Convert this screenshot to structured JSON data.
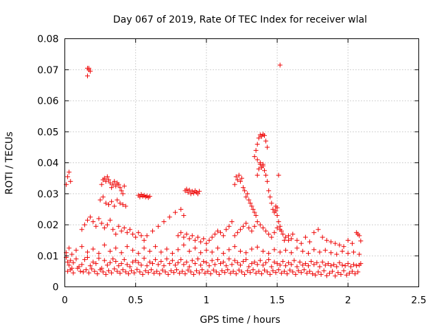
{
  "chart_data": {
    "type": "scatter",
    "title": "Day 067 of 2019, Rate Of TEC Index for receiver wlal",
    "xlabel": "GPS time / hours",
    "ylabel": "ROTI / TECUs",
    "xlim": [
      0,
      2.5
    ],
    "ylim": [
      0,
      0.08
    ],
    "grid": true,
    "marker": "+",
    "colors": {
      "series": "#ee0000",
      "grid": "#a0a0a0",
      "axis": "#000000"
    },
    "xticks": [
      {
        "value": 0,
        "label": "0"
      },
      {
        "value": 0.5,
        "label": "0.5"
      },
      {
        "value": 1,
        "label": "1"
      },
      {
        "value": 1.5,
        "label": "1.5"
      },
      {
        "value": 2,
        "label": "2"
      },
      {
        "value": 2.5,
        "label": "2.5"
      }
    ],
    "yticks": [
      {
        "value": 0,
        "label": "0"
      },
      {
        "value": 0.01,
        "label": "0.01"
      },
      {
        "value": 0.02,
        "label": "0.02"
      },
      {
        "value": 0.03,
        "label": "0.03"
      },
      {
        "value": 0.04,
        "label": "0.04"
      },
      {
        "value": 0.05,
        "label": "0.05"
      },
      {
        "value": 0.06,
        "label": "0.06"
      },
      {
        "value": 0.07,
        "label": "0.07"
      },
      {
        "value": 0.08,
        "label": "0.08"
      }
    ],
    "series": [
      {
        "name": "ROTI",
        "x": [
          0.01,
          0.02,
          0.03,
          0.04,
          0.05,
          0.06,
          0.08,
          0.1,
          0.12,
          0.14,
          0.16,
          0.18,
          0.2,
          0.22,
          0.24,
          0.26,
          0.28,
          0.3,
          0.32,
          0.34,
          0.36,
          0.38,
          0.4,
          0.42,
          0.44,
          0.46,
          0.48,
          0.5,
          0.52,
          0.54,
          0.56,
          0.58,
          0.6,
          0.62,
          0.64,
          0.66,
          0.68,
          0.7,
          0.72,
          0.74,
          0.76,
          0.78,
          0.8,
          0.82,
          0.84,
          0.86,
          0.88,
          0.9,
          0.92,
          0.94,
          0.96,
          0.98,
          1.0,
          1.02,
          1.04,
          1.06,
          1.08,
          1.1,
          1.12,
          1.14,
          1.16,
          1.18,
          1.2,
          1.22,
          1.24,
          1.26,
          1.28,
          1.3,
          1.32,
          1.34,
          1.36,
          1.38,
          1.4,
          1.42,
          1.44,
          1.46,
          1.48,
          1.5,
          1.52,
          1.54,
          1.56,
          1.58,
          1.6,
          1.62,
          1.64,
          1.66,
          1.68,
          1.7,
          1.72,
          1.74,
          1.76,
          1.78,
          1.8,
          1.82,
          1.84,
          1.86,
          1.88,
          1.9,
          1.92,
          1.94,
          1.96,
          1.98,
          2.0,
          2.02,
          2.04,
          2.06,
          2.08,
          2.09,
          0.02,
          0.04,
          0.06,
          0.09,
          0.11,
          0.13,
          0.15,
          0.17,
          0.19,
          0.21,
          0.23,
          0.25,
          0.27,
          0.29,
          0.31,
          0.33,
          0.35,
          0.37,
          0.39,
          0.41,
          0.43,
          0.45,
          0.47,
          0.49,
          0.51,
          0.53,
          0.55,
          0.57,
          0.59,
          0.61,
          0.63,
          0.65,
          0.67,
          0.69,
          0.71,
          0.73,
          0.75,
          0.77,
          0.79,
          0.81,
          0.83,
          0.85,
          0.87,
          0.89,
          0.91,
          0.93,
          0.95,
          0.97,
          0.99,
          1.01,
          1.03,
          1.05,
          1.07,
          1.09,
          1.11,
          1.13,
          1.15,
          1.17,
          1.19,
          1.21,
          1.23,
          1.25,
          1.27,
          1.29,
          1.31,
          1.33,
          1.35,
          1.37,
          1.39,
          1.41,
          1.43,
          1.45,
          1.47,
          1.49,
          1.51,
          1.53,
          1.55,
          1.57,
          1.59,
          1.61,
          1.63,
          1.65,
          1.67,
          1.69,
          1.71,
          1.73,
          1.75,
          1.77,
          1.79,
          1.81,
          1.83,
          1.85,
          1.87,
          1.89,
          1.91,
          1.93,
          1.95,
          1.97,
          1.99,
          2.01,
          2.03,
          2.05,
          2.07,
          0.01,
          0.03,
          0.05,
          0.08,
          0.12,
          0.16,
          0.2,
          0.24,
          0.28,
          0.32,
          0.36,
          0.4,
          0.44,
          0.48,
          0.52,
          0.56,
          0.6,
          0.64,
          0.68,
          0.72,
          0.76,
          0.8,
          0.84,
          0.88,
          0.92,
          0.96,
          1.0,
          1.04,
          1.08,
          1.12,
          1.16,
          1.2,
          1.24,
          1.28,
          1.32,
          1.36,
          1.4,
          1.44,
          1.48,
          1.52,
          1.56,
          1.6,
          1.64,
          1.68,
          1.72,
          1.76,
          1.8,
          1.84,
          1.88,
          1.92,
          1.96,
          2.0,
          2.04,
          2.08,
          0.01,
          0.02,
          0.03,
          0.04,
          0.16,
          0.16,
          0.17,
          0.17,
          0.18,
          0.26,
          0.27,
          0.28,
          0.29,
          0.3,
          0.31,
          0.32,
          0.33,
          0.34,
          0.35,
          0.36,
          0.37,
          0.38,
          0.39,
          0.4,
          0.41,
          0.42,
          0.25,
          0.27,
          0.29,
          0.31,
          0.33,
          0.35,
          0.37,
          0.39,
          0.41,
          0.43,
          0.52,
          0.53,
          0.54,
          0.55,
          0.56,
          0.57,
          0.58,
          0.59,
          0.6,
          0.12,
          0.14,
          0.16,
          0.18,
          0.2,
          0.22,
          0.24,
          0.26,
          0.28,
          0.3,
          0.32,
          0.34,
          0.36,
          0.38,
          0.4,
          0.42,
          0.44,
          0.46,
          0.48,
          0.5,
          0.52,
          0.54,
          0.56,
          0.58,
          0.62,
          0.66,
          0.7,
          0.74,
          0.78,
          0.82,
          0.84,
          0.85,
          0.86,
          0.87,
          0.88,
          0.89,
          0.9,
          0.91,
          0.92,
          0.93,
          0.94,
          0.95,
          0.8,
          0.82,
          0.84,
          0.86,
          0.88,
          0.9,
          0.92,
          0.94,
          0.96,
          0.98,
          1.0,
          1.02,
          1.04,
          1.06,
          1.08,
          1.1,
          1.12,
          1.14,
          1.16,
          1.18,
          1.2,
          1.21,
          1.22,
          1.23,
          1.24,
          1.25,
          1.26,
          1.27,
          1.28,
          1.29,
          1.3,
          1.31,
          1.32,
          1.33,
          1.34,
          1.35,
          1.36,
          1.37,
          1.38,
          1.39,
          1.4,
          1.41,
          1.42,
          1.43,
          1.44,
          1.45,
          1.46,
          1.47,
          1.48,
          1.49,
          1.5,
          1.51,
          1.52,
          1.53,
          1.55,
          1.58,
          1.61,
          1.64,
          1.67,
          1.7,
          1.73,
          1.76,
          1.79,
          1.82,
          1.85,
          1.88,
          1.91,
          1.94,
          1.97,
          2.0,
          2.03,
          2.06,
          2.08,
          2.07,
          2.09,
          1.35,
          1.36,
          1.37,
          1.38,
          1.39,
          1.4,
          1.41,
          1.42,
          1.43,
          1.34,
          1.36,
          1.38,
          1.4,
          1.2,
          1.22,
          1.24,
          1.26,
          1.28,
          1.3,
          1.32,
          1.34,
          1.36,
          1.38,
          1.4,
          1.42,
          1.44,
          1.46,
          1.48,
          1.5,
          1.52,
          1.54,
          1.56,
          1.58,
          1.6,
          1.52,
          1.51,
          1.5,
          1.49
        ],
        "y": [
          0.0095,
          0.008,
          0.007,
          0.0085,
          0.006,
          0.0078,
          0.009,
          0.0065,
          0.0072,
          0.0088,
          0.0095,
          0.0068,
          0.008,
          0.0075,
          0.0092,
          0.006,
          0.0085,
          0.007,
          0.0078,
          0.009,
          0.0082,
          0.0068,
          0.0075,
          0.0088,
          0.0072,
          0.0065,
          0.008,
          0.0085,
          0.0078,
          0.007,
          0.0092,
          0.0068,
          0.008,
          0.0075,
          0.0088,
          0.0072,
          0.0082,
          0.0068,
          0.009,
          0.0075,
          0.0085,
          0.007,
          0.0078,
          0.0088,
          0.0072,
          0.008,
          0.0065,
          0.0085,
          0.0075,
          0.009,
          0.007,
          0.0082,
          0.0078,
          0.0068,
          0.0085,
          0.0072,
          0.0088,
          0.0075,
          0.008,
          0.0068,
          0.009,
          0.0072,
          0.0085,
          0.0078,
          0.007,
          0.0082,
          0.0088,
          0.0065,
          0.0075,
          0.008,
          0.0072,
          0.0085,
          0.007,
          0.0078,
          0.0088,
          0.0065,
          0.008,
          0.0075,
          0.007,
          0.0082,
          0.0068,
          0.0078,
          0.0072,
          0.0085,
          0.0065,
          0.008,
          0.007,
          0.0075,
          0.0068,
          0.0082,
          0.0072,
          0.0078,
          0.0065,
          0.008,
          0.007,
          0.0075,
          0.0068,
          0.0072,
          0.0065,
          0.0078,
          0.007,
          0.0068,
          0.0075,
          0.0065,
          0.0072,
          0.0068,
          0.007,
          0.0075,
          0.005,
          0.0055,
          0.0045,
          0.006,
          0.005,
          0.0048,
          0.0055,
          0.0045,
          0.0058,
          0.005,
          0.0042,
          0.0055,
          0.0048,
          0.004,
          0.0052,
          0.0045,
          0.0058,
          0.005,
          0.0044,
          0.0055,
          0.0048,
          0.0042,
          0.0052,
          0.0045,
          0.0056,
          0.0048,
          0.004,
          0.0052,
          0.0046,
          0.0055,
          0.0044,
          0.005,
          0.0042,
          0.0054,
          0.0048,
          0.004,
          0.0052,
          0.0046,
          0.0055,
          0.0044,
          0.005,
          0.0042,
          0.0054,
          0.0048,
          0.004,
          0.0052,
          0.0045,
          0.0055,
          0.0044,
          0.005,
          0.0042,
          0.0054,
          0.0048,
          0.004,
          0.0052,
          0.0046,
          0.0055,
          0.0044,
          0.005,
          0.0042,
          0.0054,
          0.0048,
          0.004,
          0.0052,
          0.0046,
          0.0055,
          0.0044,
          0.005,
          0.0042,
          0.0054,
          0.0048,
          0.004,
          0.0052,
          0.0046,
          0.0055,
          0.0044,
          0.005,
          0.0042,
          0.0054,
          0.0048,
          0.004,
          0.0052,
          0.0046,
          0.0055,
          0.0044,
          0.005,
          0.0042,
          0.0038,
          0.0048,
          0.004,
          0.0052,
          0.0036,
          0.0044,
          0.005,
          0.0035,
          0.0046,
          0.004,
          0.0052,
          0.0038,
          0.0044,
          0.005,
          0.0042,
          0.0048,
          0.011,
          0.0125,
          0.0105,
          0.0118,
          0.013,
          0.0112,
          0.0122,
          0.0108,
          0.0135,
          0.0115,
          0.0125,
          0.011,
          0.013,
          0.0118,
          0.0108,
          0.0125,
          0.0115,
          0.013,
          0.0112,
          0.0122,
          0.0108,
          0.012,
          0.0135,
          0.0115,
          0.0125,
          0.011,
          0.0118,
          0.0112,
          0.0125,
          0.0108,
          0.012,
          0.013,
          0.0115,
          0.011,
          0.0122,
          0.0128,
          0.0115,
          0.0108,
          0.012,
          0.0112,
          0.0118,
          0.011,
          0.0125,
          0.0115,
          0.0108,
          0.012,
          0.0112,
          0.0118,
          0.011,
          0.0105,
          0.0115,
          0.0108,
          0.0112,
          0.0105,
          0.033,
          0.0355,
          0.037,
          0.034,
          0.068,
          0.0705,
          0.07,
          0.0705,
          0.0695,
          0.033,
          0.0345,
          0.035,
          0.034,
          0.0355,
          0.0345,
          0.0335,
          0.032,
          0.033,
          0.034,
          0.0325,
          0.0335,
          0.033,
          0.032,
          0.031,
          0.03,
          0.0325,
          0.028,
          0.029,
          0.027,
          0.0265,
          0.0275,
          0.026,
          0.028,
          0.027,
          0.0265,
          0.026,
          0.0295,
          0.029,
          0.0298,
          0.0292,
          0.0295,
          0.029,
          0.0293,
          0.0288,
          0.0292,
          0.0185,
          0.02,
          0.0215,
          0.0225,
          0.021,
          0.0195,
          0.022,
          0.0205,
          0.019,
          0.02,
          0.0215,
          0.0185,
          0.017,
          0.0195,
          0.018,
          0.019,
          0.0175,
          0.0185,
          0.017,
          0.016,
          0.0175,
          0.0165,
          0.015,
          0.0165,
          0.018,
          0.0195,
          0.021,
          0.0225,
          0.024,
          0.025,
          0.023,
          0.031,
          0.0315,
          0.0305,
          0.0312,
          0.03,
          0.0308,
          0.0302,
          0.031,
          0.0305,
          0.03,
          0.0308,
          0.0165,
          0.0175,
          0.016,
          0.017,
          0.0155,
          0.0165,
          0.015,
          0.016,
          0.0145,
          0.0155,
          0.014,
          0.015,
          0.016,
          0.017,
          0.018,
          0.0175,
          0.0165,
          0.0185,
          0.0195,
          0.021,
          0.033,
          0.0355,
          0.0345,
          0.036,
          0.034,
          0.035,
          0.032,
          0.031,
          0.029,
          0.03,
          0.028,
          0.027,
          0.026,
          0.025,
          0.024,
          0.023,
          0.036,
          0.038,
          0.0395,
          0.0385,
          0.039,
          0.0375,
          0.036,
          0.034,
          0.031,
          0.029,
          0.027,
          0.025,
          0.024,
          0.026,
          0.023,
          0.021,
          0.0195,
          0.018,
          0.015,
          0.0165,
          0.017,
          0.015,
          0.014,
          0.016,
          0.0145,
          0.0175,
          0.0185,
          0.016,
          0.015,
          0.0145,
          0.014,
          0.0135,
          0.013,
          0.015,
          0.014,
          0.0175,
          0.0165,
          0.017,
          0.0148,
          0.044,
          0.046,
          0.048,
          0.049,
          0.0485,
          0.0492,
          0.0488,
          0.047,
          0.045,
          0.042,
          0.041,
          0.04,
          0.0395,
          0.0165,
          0.0175,
          0.0185,
          0.0195,
          0.0205,
          0.019,
          0.018,
          0.0195,
          0.021,
          0.02,
          0.019,
          0.018,
          0.017,
          0.016,
          0.0175,
          0.019,
          0.0185,
          0.017,
          0.016,
          0.015,
          0.0155,
          0.0715,
          0.036,
          0.0255,
          0.0245
        ]
      }
    ]
  }
}
